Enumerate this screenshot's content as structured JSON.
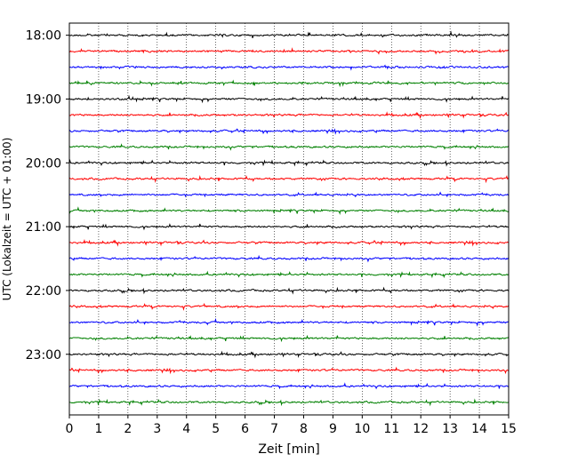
{
  "chart_data": {
    "type": "line",
    "title": "",
    "xlabel": "Zeit  [min]",
    "ylabel": "UTC (Lokalzeit = UTC + 01:00)",
    "xlim": [
      0,
      15
    ],
    "x_ticks": [
      0,
      1,
      2,
      3,
      4,
      5,
      6,
      7,
      8,
      9,
      10,
      11,
      12,
      13,
      14,
      15
    ],
    "y_ticks": [
      {
        "time_h": 18,
        "label": "18:00"
      },
      {
        "time_h": 19,
        "label": "19:00"
      },
      {
        "time_h": 20,
        "label": "20:00"
      },
      {
        "time_h": 21,
        "label": "21:00"
      },
      {
        "time_h": 22,
        "label": "22:00"
      },
      {
        "time_h": 23,
        "label": "23:00"
      }
    ],
    "ylim_hours": [
      17.81,
      23.95
    ],
    "grid": "vertical dotted lines at each minute",
    "trace_colors": [
      "#000000",
      "#ff0000",
      "#0000ff",
      "#008000"
    ],
    "traces_start_hours": [
      18.0,
      18.25,
      18.5,
      18.75,
      19.0,
      19.25,
      19.5,
      19.75,
      20.0,
      20.25,
      20.5,
      20.75,
      21.0,
      21.25,
      21.5,
      21.75,
      22.0,
      22.25,
      22.5,
      22.75,
      23.0,
      23.25,
      23.5,
      23.75
    ],
    "trace_duration_min": 15,
    "amplitude_note": "small noise around baseline"
  }
}
